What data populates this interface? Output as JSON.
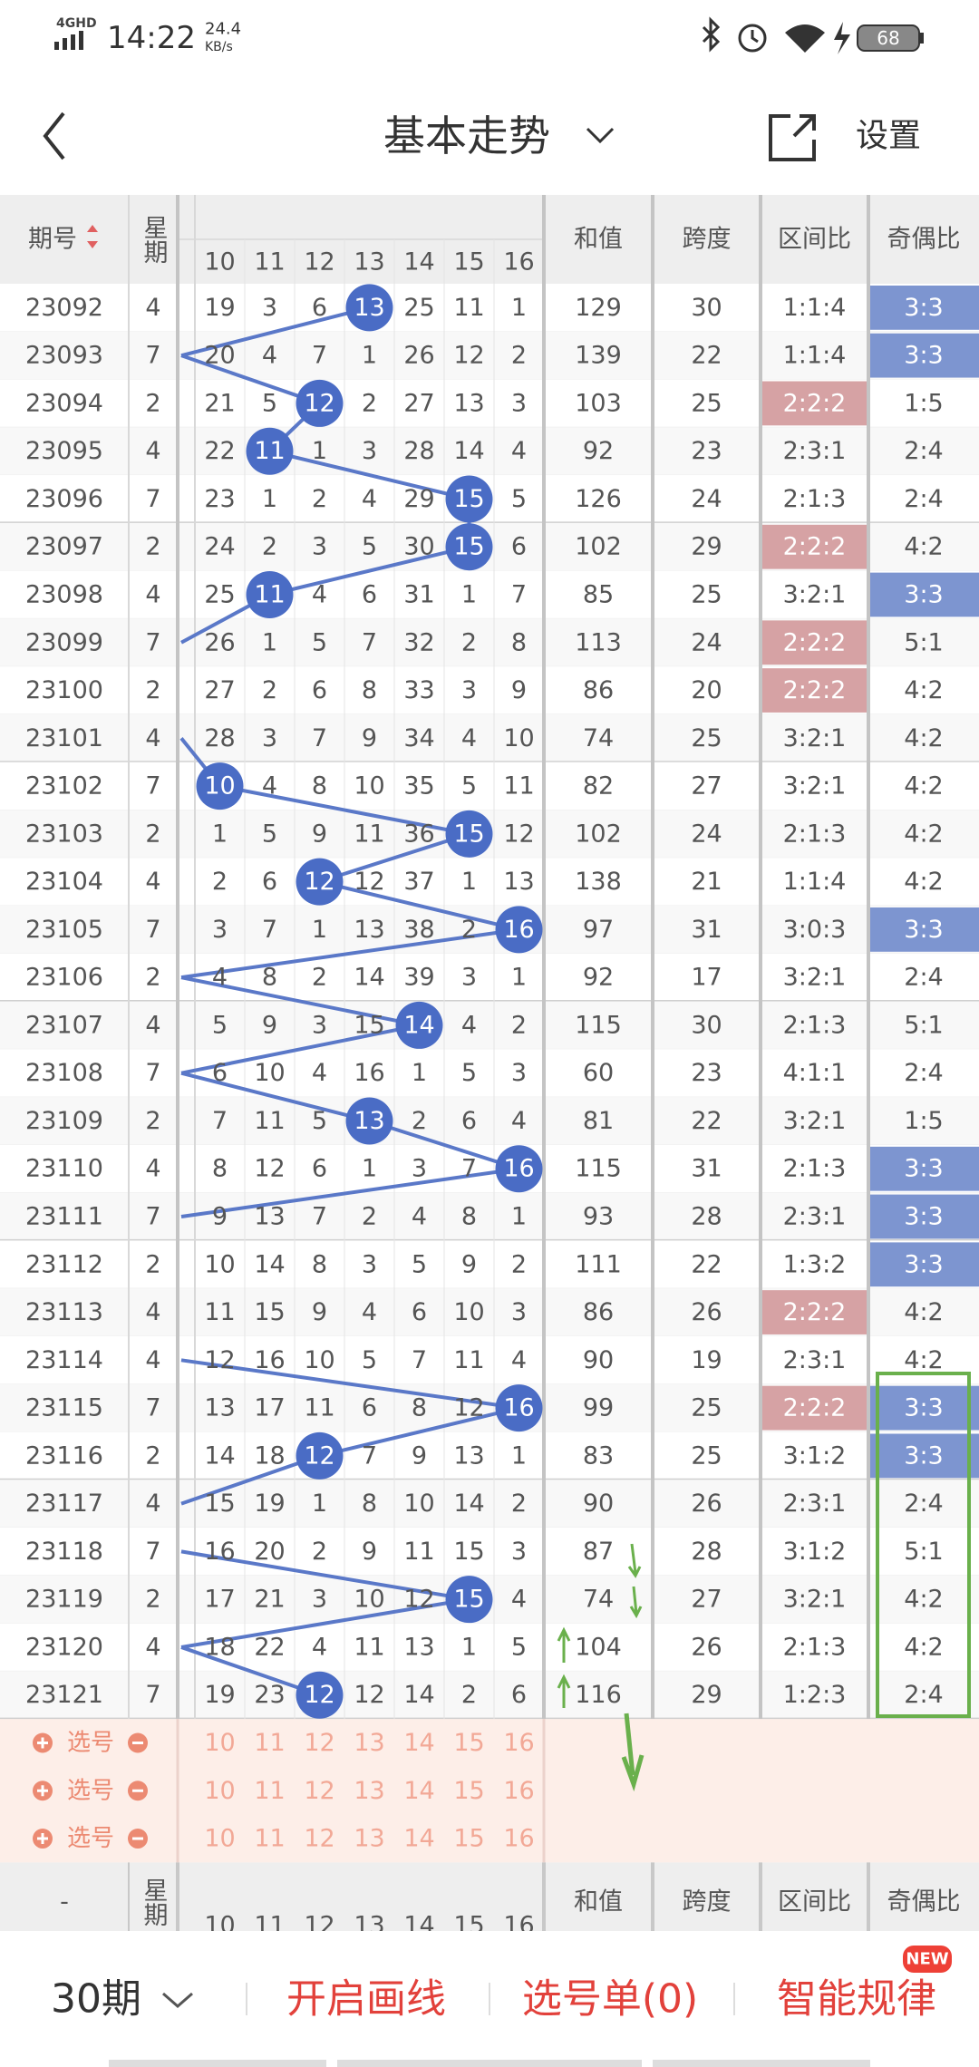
{
  "status_bar": {
    "network": "4GHD",
    "time": "14:22",
    "speed": "24.4",
    "speed_unit": "KB/s",
    "battery": "68"
  },
  "header": {
    "title": "基本走势",
    "settings": "设置"
  },
  "table": {
    "columns": {
      "issue": "期号",
      "weekday": "星期",
      "numbers": [
        10,
        11,
        12,
        13,
        14,
        15,
        16
      ],
      "sum": "和值",
      "span": "跨度",
      "range_ratio": "区间比",
      "parity_ratio": "奇偶比"
    },
    "rows": [
      {
        "issue": "23092",
        "weekday": 4,
        "cells": [
          19,
          3,
          6,
          {
            "value": 13,
            "hit": true
          },
          25,
          11,
          1
        ],
        "sum": 129,
        "span": 30,
        "range_ratio": "1:1:4",
        "parity_ratio": {
          "text": "3:3",
          "highlight": true
        }
      },
      {
        "issue": "23093",
        "weekday": 7,
        "cells": [
          20,
          4,
          7,
          1,
          26,
          12,
          2
        ],
        "sum": 139,
        "span": 22,
        "range_ratio": "1:1:4",
        "parity_ratio": {
          "text": "3:3",
          "highlight": true
        }
      },
      {
        "issue": "23094",
        "weekday": 2,
        "cells": [
          21,
          5,
          {
            "value": 12,
            "hit": true
          },
          2,
          27,
          13,
          3
        ],
        "sum": 103,
        "span": 25,
        "range_ratio": {
          "text": "2:2:2",
          "highlight": true
        },
        "parity_ratio": "1:5"
      },
      {
        "issue": "23095",
        "weekday": 4,
        "cells": [
          22,
          {
            "value": 11,
            "hit": true
          },
          1,
          3,
          28,
          14,
          4
        ],
        "sum": 92,
        "span": 23,
        "range_ratio": "2:3:1",
        "parity_ratio": "2:4"
      },
      {
        "issue": "23096",
        "weekday": 7,
        "cells": [
          23,
          1,
          2,
          4,
          29,
          {
            "value": 15,
            "hit": true
          },
          5
        ],
        "sum": 126,
        "span": 24,
        "range_ratio": "2:1:3",
        "parity_ratio": "2:4"
      },
      {
        "issue": "23097",
        "weekday": 2,
        "cells": [
          24,
          2,
          3,
          5,
          30,
          {
            "value": 15,
            "hit": true
          },
          6
        ],
        "sum": 102,
        "span": 29,
        "range_ratio": {
          "text": "2:2:2",
          "highlight": true
        },
        "parity_ratio": "4:2"
      },
      {
        "issue": "23098",
        "weekday": 4,
        "cells": [
          25,
          {
            "value": 11,
            "hit": true
          },
          4,
          6,
          31,
          1,
          7
        ],
        "sum": 85,
        "span": 25,
        "range_ratio": "3:2:1",
        "parity_ratio": {
          "text": "3:3",
          "highlight": true
        }
      },
      {
        "issue": "23099",
        "weekday": 7,
        "cells": [
          26,
          1,
          5,
          7,
          32,
          2,
          8
        ],
        "sum": 113,
        "span": 24,
        "range_ratio": {
          "text": "2:2:2",
          "highlight": true
        },
        "parity_ratio": "5:1"
      },
      {
        "issue": "23100",
        "weekday": 2,
        "cells": [
          27,
          2,
          6,
          8,
          33,
          3,
          9
        ],
        "sum": 86,
        "span": 20,
        "range_ratio": {
          "text": "2:2:2",
          "highlight": true
        },
        "parity_ratio": "4:2"
      },
      {
        "issue": "23101",
        "weekday": 4,
        "cells": [
          28,
          3,
          7,
          9,
          34,
          4,
          10
        ],
        "sum": 74,
        "span": 25,
        "range_ratio": "3:2:1",
        "parity_ratio": "4:2"
      },
      {
        "issue": "23102",
        "weekday": 7,
        "cells": [
          {
            "value": 10,
            "hit": true
          },
          4,
          8,
          10,
          35,
          5,
          11
        ],
        "sum": 82,
        "span": 27,
        "range_ratio": "3:2:1",
        "parity_ratio": "4:2"
      },
      {
        "issue": "23103",
        "weekday": 2,
        "cells": [
          1,
          5,
          9,
          11,
          36,
          {
            "value": 15,
            "hit": true
          },
          12
        ],
        "sum": 102,
        "span": 24,
        "range_ratio": "2:1:3",
        "parity_ratio": "4:2"
      },
      {
        "issue": "23104",
        "weekday": 4,
        "cells": [
          2,
          6,
          {
            "value": 12,
            "hit": true
          },
          12,
          37,
          1,
          13
        ],
        "sum": 138,
        "span": 21,
        "range_ratio": "1:1:4",
        "parity_ratio": "4:2"
      },
      {
        "issue": "23105",
        "weekday": 7,
        "cells": [
          3,
          7,
          1,
          13,
          38,
          2,
          {
            "value": 16,
            "hit": true
          }
        ],
        "sum": 97,
        "span": 31,
        "range_ratio": "3:0:3",
        "parity_ratio": {
          "text": "3:3",
          "highlight": true
        }
      },
      {
        "issue": "23106",
        "weekday": 2,
        "cells": [
          4,
          8,
          2,
          14,
          39,
          3,
          1
        ],
        "sum": 92,
        "span": 17,
        "range_ratio": "3:2:1",
        "parity_ratio": "2:4"
      },
      {
        "issue": "23107",
        "weekday": 4,
        "cells": [
          5,
          9,
          3,
          15,
          {
            "value": 14,
            "hit": true
          },
          4,
          2
        ],
        "sum": 115,
        "span": 30,
        "range_ratio": "2:1:3",
        "parity_ratio": "5:1"
      },
      {
        "issue": "23108",
        "weekday": 7,
        "cells": [
          6,
          10,
          4,
          16,
          1,
          5,
          3
        ],
        "sum": 60,
        "span": 23,
        "range_ratio": "4:1:1",
        "parity_ratio": "2:4"
      },
      {
        "issue": "23109",
        "weekday": 2,
        "cells": [
          7,
          11,
          5,
          {
            "value": 13,
            "hit": true
          },
          2,
          6,
          4
        ],
        "sum": 81,
        "span": 22,
        "range_ratio": "3:2:1",
        "parity_ratio": "1:5"
      },
      {
        "issue": "23110",
        "weekday": 4,
        "cells": [
          8,
          12,
          6,
          1,
          3,
          7,
          {
            "value": 16,
            "hit": true
          }
        ],
        "sum": 115,
        "span": 31,
        "range_ratio": "2:1:3",
        "parity_ratio": {
          "text": "3:3",
          "highlight": true
        }
      },
      {
        "issue": "23111",
        "weekday": 7,
        "cells": [
          9,
          13,
          7,
          2,
          4,
          8,
          1
        ],
        "sum": 93,
        "span": 28,
        "range_ratio": "2:3:1",
        "parity_ratio": {
          "text": "3:3",
          "highlight": true
        }
      },
      {
        "issue": "23112",
        "weekday": 2,
        "cells": [
          10,
          14,
          8,
          3,
          5,
          9,
          2
        ],
        "sum": 111,
        "span": 22,
        "range_ratio": "1:3:2",
        "parity_ratio": {
          "text": "3:3",
          "highlight": true
        }
      },
      {
        "issue": "23113",
        "weekday": 4,
        "cells": [
          11,
          15,
          9,
          4,
          6,
          10,
          3
        ],
        "sum": 86,
        "span": 26,
        "range_ratio": {
          "text": "2:2:2",
          "highlight": true
        },
        "parity_ratio": "4:2"
      },
      {
        "issue": "23114",
        "weekday": 4,
        "cells": [
          12,
          16,
          10,
          5,
          7,
          11,
          4
        ],
        "sum": 90,
        "span": 19,
        "range_ratio": "2:3:1",
        "parity_ratio": "4:2"
      },
      {
        "issue": "23115",
        "weekday": 7,
        "cells": [
          13,
          17,
          11,
          6,
          8,
          12,
          {
            "value": 16,
            "hit": true
          }
        ],
        "sum": 99,
        "span": 25,
        "range_ratio": {
          "text": "2:2:2",
          "highlight": true
        },
        "parity_ratio": {
          "text": "3:3",
          "highlight": true
        }
      },
      {
        "issue": "23116",
        "weekday": 2,
        "cells": [
          14,
          18,
          {
            "value": 12,
            "hit": true
          },
          7,
          9,
          13,
          1
        ],
        "sum": 83,
        "span": 25,
        "range_ratio": "3:1:2",
        "parity_ratio": {
          "text": "3:3",
          "highlight": true
        }
      },
      {
        "issue": "23117",
        "weekday": 4,
        "cells": [
          15,
          19,
          1,
          8,
          10,
          14,
          2
        ],
        "sum": 90,
        "span": 26,
        "range_ratio": "2:3:1",
        "parity_ratio": "2:4"
      },
      {
        "issue": "23118",
        "weekday": 7,
        "cells": [
          16,
          20,
          2,
          9,
          11,
          15,
          3
        ],
        "sum": 87,
        "span": 28,
        "range_ratio": "3:1:2",
        "parity_ratio": "5:1"
      },
      {
        "issue": "23119",
        "weekday": 2,
        "cells": [
          17,
          21,
          3,
          10,
          12,
          {
            "value": 15,
            "hit": true
          },
          4
        ],
        "sum": 74,
        "span": 27,
        "range_ratio": "3:2:1",
        "parity_ratio": "4:2"
      },
      {
        "issue": "23120",
        "weekday": 4,
        "cells": [
          18,
          22,
          4,
          11,
          13,
          1,
          5
        ],
        "sum": 104,
        "span": 26,
        "range_ratio": "2:1:3",
        "parity_ratio": "4:2"
      },
      {
        "issue": "23121",
        "weekday": 7,
        "cells": [
          19,
          23,
          {
            "value": 12,
            "hit": true
          },
          12,
          14,
          2,
          6
        ],
        "sum": 116,
        "span": 29,
        "range_ratio": "1:2:3",
        "parity_ratio": "2:4"
      }
    ]
  },
  "selection_rows": [
    "选号",
    "选号",
    "选号"
  ],
  "footer_header": {
    "issue": "-"
  },
  "bottom_bar": {
    "period": "30期",
    "draw_lines": "开启画线",
    "pick_list": "选号单(0)",
    "smart_rules": "智能规律",
    "badge": "NEW"
  }
}
